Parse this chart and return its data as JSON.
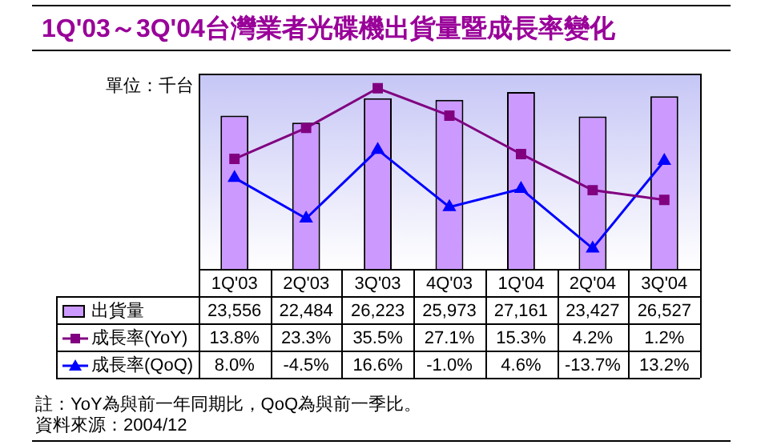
{
  "chart_data": {
    "type": "bar",
    "title": "1Q'03～3Q'04台灣業者光碟機出貨量暨成長率變化",
    "ylabel": "單位：千台",
    "categories": [
      "1Q'03",
      "2Q'03",
      "3Q'03",
      "4Q'03",
      "1Q'04",
      "2Q'04",
      "3Q'04"
    ],
    "series": [
      {
        "name": "出貨量",
        "color": "#cc99ff",
        "values": [
          23556,
          22484,
          26223,
          25973,
          27161,
          23427,
          26527
        ],
        "value_labels": [
          "23,556",
          "22,484",
          "26,223",
          "25,973",
          "27,161",
          "23,427",
          "26,527"
        ]
      },
      {
        "name": "成長率(YoY)",
        "type": "line",
        "axis": "y2",
        "marker": "square",
        "color": "#800080",
        "values": [
          13.8,
          23.3,
          35.5,
          27.1,
          15.3,
          4.2,
          1.2
        ],
        "value_labels": [
          "13.8%",
          "23.3%",
          "35.5%",
          "27.1%",
          "15.3%",
          "4.2%",
          "1.2%"
        ]
      },
      {
        "name": "成長率(QoQ)",
        "type": "line",
        "axis": "y2",
        "marker": "triangle",
        "color": "#0000ff",
        "values": [
          8.0,
          -4.5,
          16.6,
          -1.0,
          4.6,
          -13.7,
          13.2
        ],
        "value_labels": [
          "8.0%",
          "-4.5%",
          "16.6%",
          "-1.0%",
          "4.6%",
          "-13.7%",
          "13.2%"
        ]
      }
    ],
    "ylim": [
      0,
      30000
    ],
    "y2lim": [
      -20,
      40
    ],
    "tick_labels": "x",
    "grid": false,
    "legend": "bottom",
    "annotations": [
      "註：YoY為與前一年同期比，QoQ為與前一季比。",
      "資料來源：2004/12"
    ]
  }
}
